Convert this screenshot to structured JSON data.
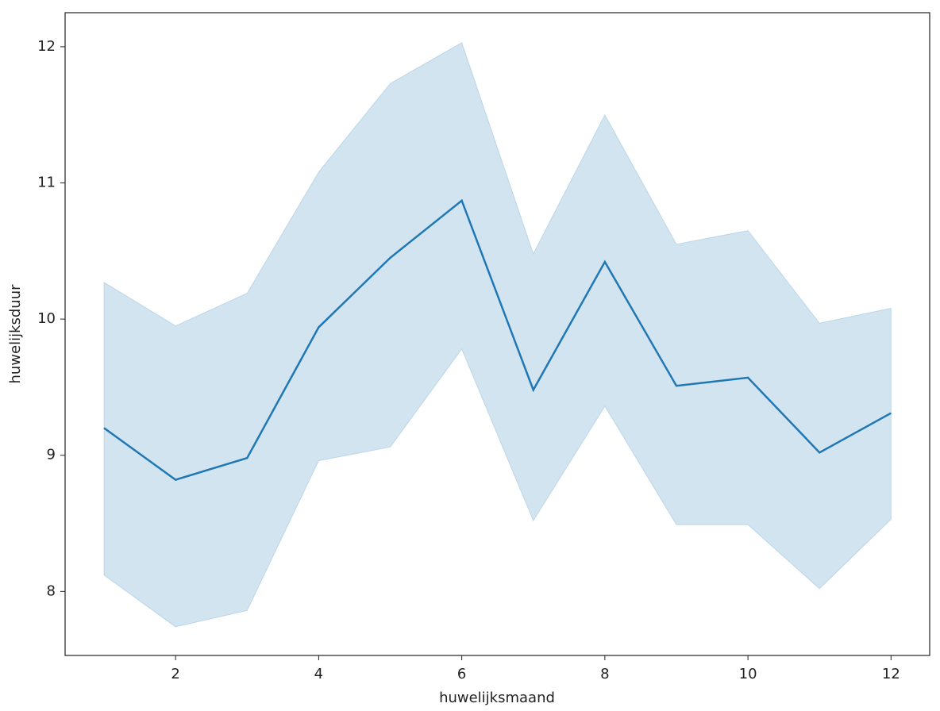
{
  "chart_data": {
    "type": "line",
    "xlabel": "huwelijksmaand",
    "ylabel": "huwelijksduur",
    "x": [
      1,
      2,
      3,
      4,
      5,
      6,
      7,
      8,
      9,
      10,
      11,
      12
    ],
    "series": [
      {
        "color": "#1f77b4",
        "values": [
          9.2,
          8.82,
          8.98,
          9.94,
          10.45,
          10.87,
          9.48,
          10.42,
          9.51,
          9.57,
          9.02,
          9.31
        ],
        "upper": [
          10.27,
          9.95,
          10.19,
          11.08,
          11.73,
          12.03,
          10.48,
          11.5,
          10.55,
          10.65,
          9.97,
          10.08
        ],
        "lower": [
          8.12,
          7.74,
          7.86,
          8.96,
          9.06,
          9.78,
          8.52,
          9.36,
          8.49,
          8.49,
          8.02,
          8.53
        ],
        "band_opacity": 0.2
      }
    ],
    "xlim": [
      0.456,
      12.54
    ],
    "ylim": [
      7.53,
      12.25
    ],
    "xticks": [
      2,
      4,
      6,
      8,
      10,
      12
    ],
    "yticks": [
      8,
      9,
      10,
      11,
      12
    ]
  }
}
